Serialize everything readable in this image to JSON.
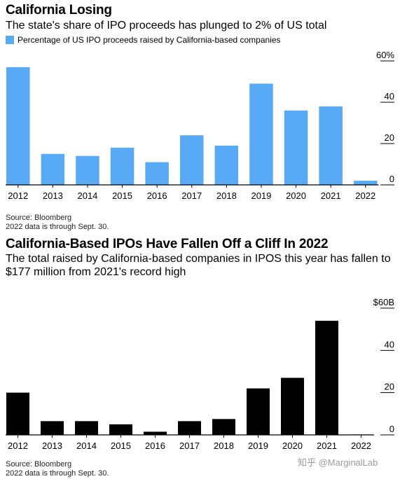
{
  "charts": [
    {
      "title": "California Losing",
      "subtitle": "The state's share of IPO proceeds has plunged to 2% of US total",
      "legend": "Percentage of US IPO proceeds raised by California-based companies",
      "source": "Source: Bloomberg",
      "note": "2022 data is through Sept. 30."
    },
    {
      "title": "California-Based IPOs Have Fallen Off a Cliff In 2022",
      "subtitle": "The total raised by California-based companies in IPOS this year has fallen to $177 million from 2021's record high",
      "source": "Source: Bloomberg",
      "note": "2022 data is through Sept. 30."
    }
  ],
  "watermark": "知乎 @MarginalLab",
  "chart_data": [
    {
      "type": "bar",
      "title": "California Losing",
      "subtitle": "The state's share of IPO proceeds has plunged to 2% of US total",
      "categories": [
        "2012",
        "2013",
        "2014",
        "2015",
        "2016",
        "2017",
        "2018",
        "2019",
        "2020",
        "2021",
        "2022"
      ],
      "series": [
        {
          "name": "Percentage of US IPO proceeds raised by California-based companies",
          "values": [
            57,
            15,
            14,
            18,
            11,
            24,
            19,
            49,
            36,
            38,
            2
          ]
        }
      ],
      "ylim": [
        0,
        60
      ],
      "yticks": [
        0,
        20,
        40,
        60
      ],
      "ytick_labels": [
        "0",
        "20",
        "40",
        "60%"
      ],
      "color": "#58A9F6",
      "grid": false,
      "legend_position": "top-left"
    },
    {
      "type": "bar",
      "title": "California-Based IPOs Have Fallen Off a Cliff In 2022",
      "categories": [
        "2012",
        "2013",
        "2014",
        "2015",
        "2016",
        "2017",
        "2018",
        "2019",
        "2020",
        "2021",
        "2022"
      ],
      "series": [
        {
          "values": [
            20,
            6.5,
            6.5,
            5,
            1.5,
            6.5,
            7.5,
            22,
            27,
            54,
            0.18
          ]
        }
      ],
      "ylim": [
        0,
        60
      ],
      "yticks": [
        0,
        20,
        40,
        60
      ],
      "ytick_labels": [
        "0",
        "20",
        "40",
        "$60B"
      ],
      "color": "#000000",
      "grid": false
    }
  ]
}
